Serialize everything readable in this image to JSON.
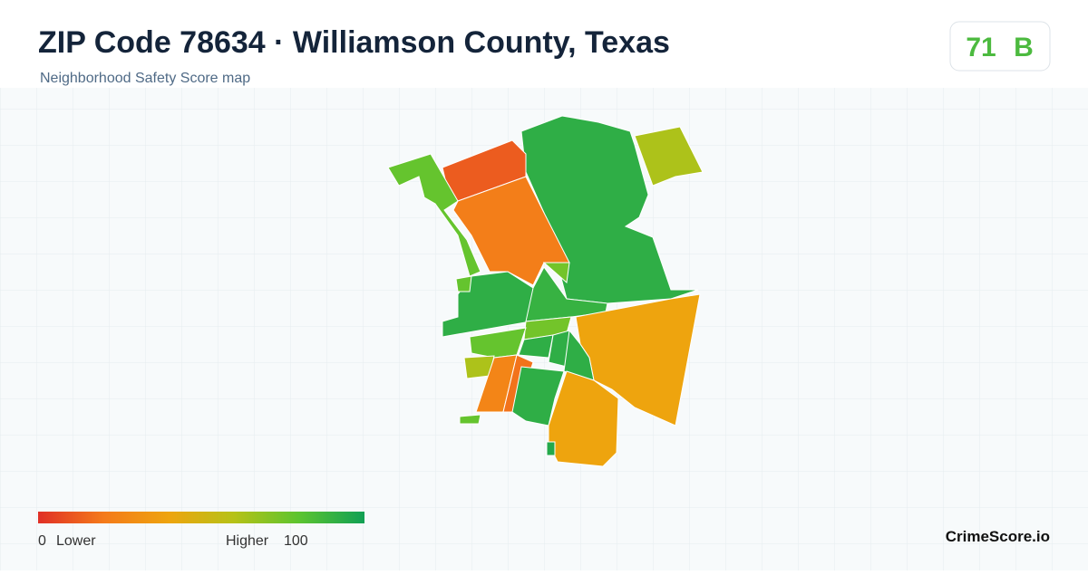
{
  "header": {
    "title": "ZIP Code 78634 · Williamson County, Texas",
    "subtitle": "Neighborhood Safety Score map",
    "score": "71",
    "grade": "B"
  },
  "map": {
    "regions": [
      {
        "value": 92
      },
      {
        "value": 62
      },
      {
        "value": 12
      },
      {
        "value": 22
      },
      {
        "value": 78
      },
      {
        "value": 92
      },
      {
        "value": 90
      },
      {
        "value": 75
      },
      {
        "value": 40
      },
      {
        "value": 75
      },
      {
        "value": 78
      },
      {
        "value": 92
      },
      {
        "value": 92
      },
      {
        "value": 92
      },
      {
        "value": 62
      },
      {
        "value": 25
      },
      {
        "value": 18
      },
      {
        "value": 92
      },
      {
        "value": 40
      },
      {
        "value": 78
      },
      {
        "value": 78
      },
      {
        "value": 95
      }
    ]
  },
  "legend": {
    "min": 0,
    "max": 100,
    "min_label": "Lower",
    "max_label": "Higher",
    "colors": [
      "#e02f26",
      "#f47a1a",
      "#eea40e",
      "#b6c217",
      "#5cc430",
      "#11a054"
    ]
  },
  "footer": {
    "brand": "CrimeScore.io"
  }
}
